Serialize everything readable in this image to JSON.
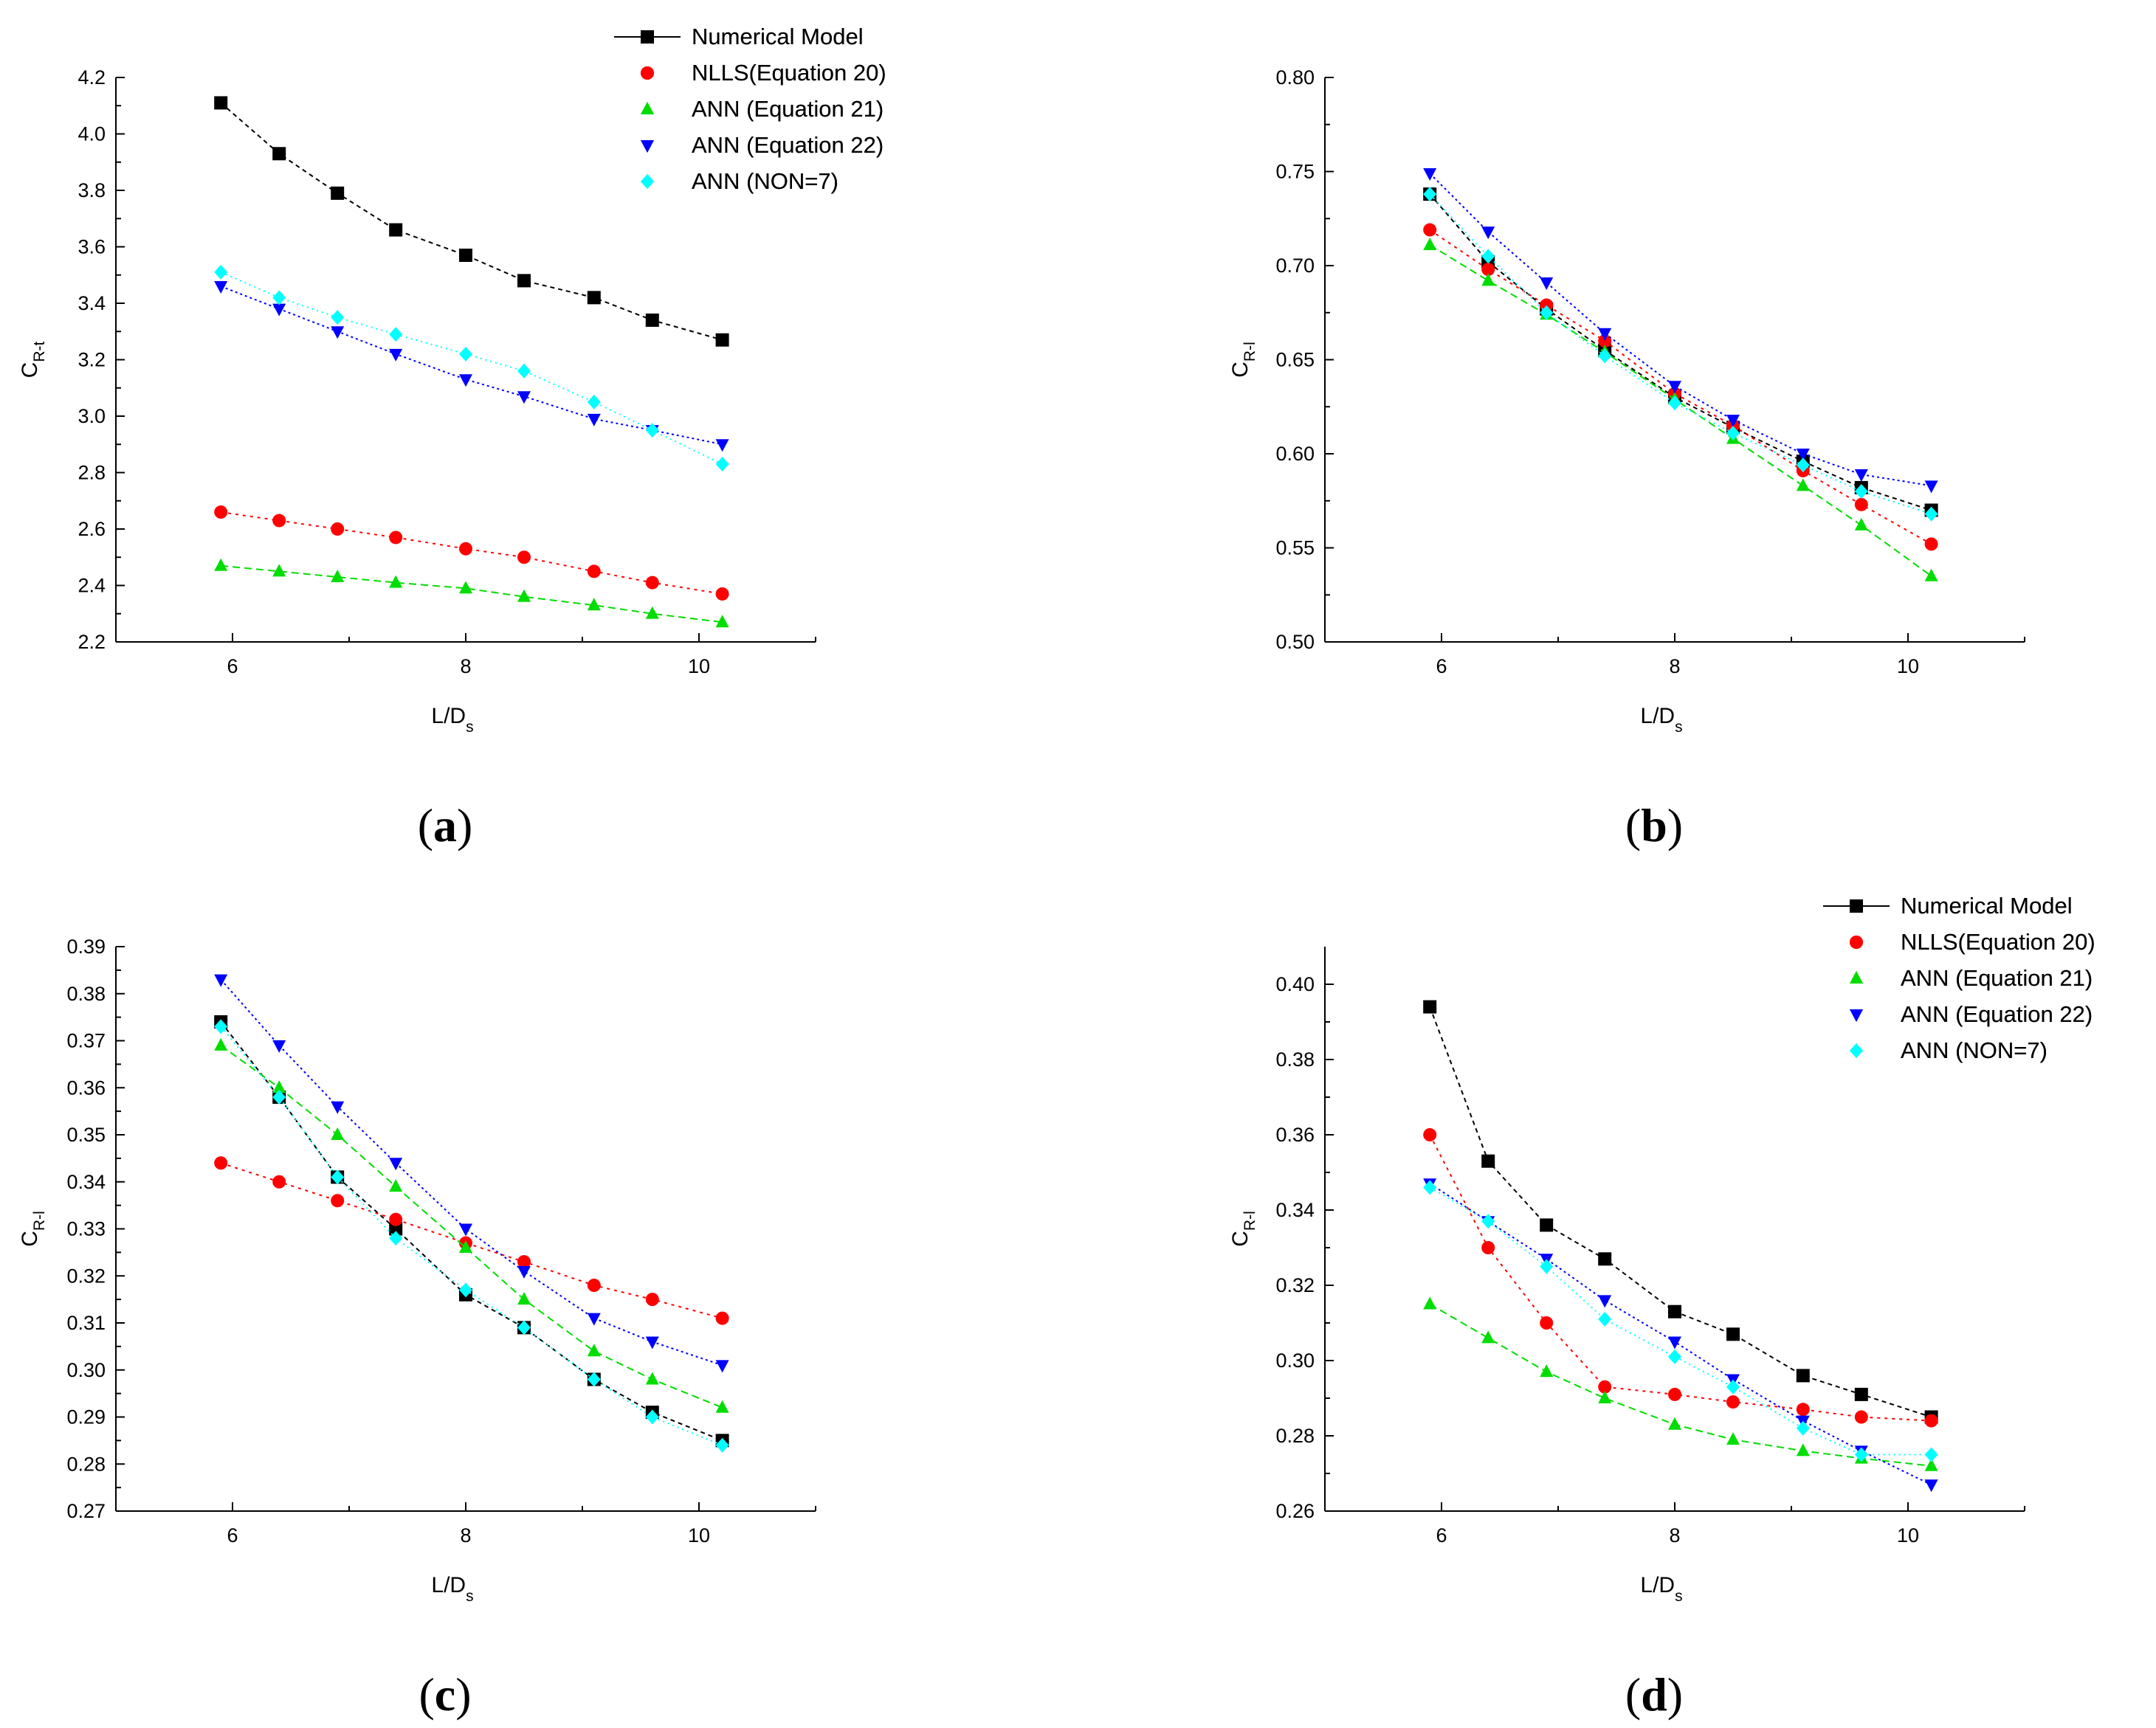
{
  "figure": {
    "colors": {
      "numerical": "#000000",
      "nlls": "#ff0000",
      "ann21": "#00dd00",
      "ann22": "#0000ff",
      "non7": "#00ffff"
    }
  },
  "chart_data": [
    {
      "id": "a",
      "panel_label": "(a)",
      "type": "line",
      "xlabel": "L/D",
      "xlabel_sub": "s",
      "ylabel": "C",
      "ylabel_sub": "R-t",
      "xlim": [
        5,
        11
      ],
      "xticks": [
        "6",
        "8",
        "10"
      ],
      "ylim": [
        2.2,
        4.2
      ],
      "yticks": [
        "2.2",
        "2.4",
        "2.6",
        "2.8",
        "3.0",
        "3.2",
        "3.4",
        "3.6",
        "3.8",
        "4.0",
        "4.2"
      ],
      "x": [
        5.9,
        6.4,
        6.9,
        7.4,
        8.0,
        8.5,
        9.1,
        9.6,
        10.2
      ],
      "series": [
        {
          "name": "Numerical Model",
          "key": "numerical",
          "marker": "square",
          "values": [
            4.11,
            3.93,
            3.79,
            3.66,
            3.57,
            3.48,
            3.42,
            3.34,
            3.27
          ]
        },
        {
          "name": "NLLS(Equation 20)",
          "key": "nlls",
          "marker": "circle",
          "values": [
            2.66,
            2.63,
            2.6,
            2.57,
            2.53,
            2.5,
            2.45,
            2.41,
            2.37
          ]
        },
        {
          "name": "ANN (Equation 21)",
          "key": "ann21",
          "marker": "triangle-up",
          "values": [
            2.47,
            2.45,
            2.43,
            2.41,
            2.39,
            2.36,
            2.33,
            2.3,
            2.27
          ]
        },
        {
          "name": "ANN (Equation 22)",
          "key": "ann22",
          "marker": "triangle-down",
          "values": [
            3.46,
            3.38,
            3.3,
            3.22,
            3.13,
            3.07,
            2.99,
            2.95,
            2.9
          ]
        },
        {
          "name": "ANN (NON=7)",
          "key": "non7",
          "marker": "diamond",
          "values": [
            3.51,
            3.42,
            3.35,
            3.29,
            3.22,
            3.16,
            3.05,
            2.95,
            2.83
          ]
        }
      ]
    },
    {
      "id": "b",
      "panel_label": "(b)",
      "type": "line",
      "xlabel": "L/D",
      "xlabel_sub": "s",
      "ylabel": "C",
      "ylabel_sub": "R-l",
      "xlim": [
        5,
        11
      ],
      "xticks": [
        "6",
        "8",
        "10"
      ],
      "ylim": [
        0.5,
        0.8
      ],
      "yticks": [
        "0.50",
        "0.55",
        "0.60",
        "0.65",
        "0.70",
        "0.75",
        "0.80"
      ],
      "x": [
        5.9,
        6.4,
        6.9,
        7.4,
        8.0,
        8.5,
        9.1,
        9.6,
        10.2
      ],
      "series": [
        {
          "name": "Numerical Model",
          "key": "numerical",
          "marker": "square",
          "values": [
            0.738,
            0.702,
            0.677,
            0.655,
            0.63,
            0.614,
            0.596,
            0.582,
            0.57
          ]
        },
        {
          "name": "NLLS(Equation 20)",
          "key": "nlls",
          "marker": "circle",
          "values": [
            0.719,
            0.698,
            0.679,
            0.66,
            0.632,
            0.615,
            0.591,
            0.573,
            0.552
          ]
        },
        {
          "name": "ANN (Equation 21)",
          "key": "ann21",
          "marker": "triangle-up",
          "values": [
            0.711,
            0.692,
            0.674,
            0.654,
            0.629,
            0.608,
            0.583,
            0.562,
            0.535
          ]
        },
        {
          "name": "ANN (Equation 22)",
          "key": "ann22",
          "marker": "triangle-down",
          "values": [
            0.749,
            0.718,
            0.691,
            0.664,
            0.636,
            0.618,
            0.6,
            0.589,
            0.583
          ]
        },
        {
          "name": "ANN (NON=7)",
          "key": "non7",
          "marker": "diamond",
          "values": [
            0.738,
            0.705,
            0.675,
            0.652,
            0.627,
            0.611,
            0.594,
            0.58,
            0.568
          ]
        }
      ]
    },
    {
      "id": "c",
      "panel_label": "(c)",
      "type": "line",
      "xlabel": "L/D",
      "xlabel_sub": "s",
      "ylabel": "C",
      "ylabel_sub": "R-l",
      "xlim": [
        5,
        11
      ],
      "xticks": [
        "6",
        "8",
        "10"
      ],
      "ylim": [
        0.27,
        0.39
      ],
      "yticks": [
        "0.27",
        "0.28",
        "0.29",
        "0.30",
        "0.31",
        "0.32",
        "0.33",
        "0.34",
        "0.35",
        "0.36",
        "0.37",
        "0.38",
        "0.39"
      ],
      "x": [
        5.9,
        6.4,
        6.9,
        7.4,
        8.0,
        8.5,
        9.1,
        9.6,
        10.2
      ],
      "series": [
        {
          "name": "Numerical Model",
          "key": "numerical",
          "marker": "square",
          "values": [
            0.374,
            0.358,
            0.341,
            0.33,
            0.316,
            0.309,
            0.298,
            0.291,
            0.285
          ]
        },
        {
          "name": "NLLS(Equation 20)",
          "key": "nlls",
          "marker": "circle",
          "values": [
            0.344,
            0.34,
            0.336,
            0.332,
            0.327,
            0.323,
            0.318,
            0.315,
            0.311
          ]
        },
        {
          "name": "ANN (Equation 21)",
          "key": "ann21",
          "marker": "triangle-up",
          "values": [
            0.369,
            0.36,
            0.35,
            0.339,
            0.326,
            0.315,
            0.304,
            0.298,
            0.292
          ]
        },
        {
          "name": "ANN (Equation 22)",
          "key": "ann22",
          "marker": "triangle-down",
          "values": [
            0.383,
            0.369,
            0.356,
            0.344,
            0.33,
            0.321,
            0.311,
            0.306,
            0.301
          ]
        },
        {
          "name": "ANN (NON=7)",
          "key": "non7",
          "marker": "diamond",
          "values": [
            0.373,
            0.358,
            0.341,
            0.328,
            0.317,
            0.309,
            0.298,
            0.29,
            0.284
          ]
        }
      ]
    },
    {
      "id": "d",
      "panel_label": "(d)",
      "type": "line",
      "xlabel": "L/D",
      "xlabel_sub": "s",
      "ylabel": "C",
      "ylabel_sub": "R-l",
      "xlim": [
        5,
        11
      ],
      "xticks": [
        "6",
        "8",
        "10"
      ],
      "ylim": [
        0.26,
        0.41
      ],
      "yticks": [
        "0.26",
        "0.28",
        "0.30",
        "0.32",
        "0.34",
        "0.36",
        "0.38",
        "0.40"
      ],
      "x": [
        5.9,
        6.4,
        6.9,
        7.4,
        8.0,
        8.5,
        9.1,
        9.6,
        10.2
      ],
      "series": [
        {
          "name": "Numerical Model",
          "key": "numerical",
          "marker": "square",
          "values": [
            0.394,
            0.353,
            0.336,
            0.327,
            0.313,
            0.307,
            0.296,
            0.291,
            0.285
          ]
        },
        {
          "name": "NLLS(Equation 20)",
          "key": "nlls",
          "marker": "circle",
          "values": [
            0.36,
            0.33,
            0.31,
            0.293,
            0.291,
            0.289,
            0.287,
            0.285,
            0.284
          ]
        },
        {
          "name": "ANN (Equation 21)",
          "key": "ann21",
          "marker": "triangle-up",
          "values": [
            0.315,
            0.306,
            0.297,
            0.29,
            0.283,
            0.279,
            0.276,
            0.274,
            0.272
          ]
        },
        {
          "name": "ANN (Equation 22)",
          "key": "ann22",
          "marker": "triangle-down",
          "values": [
            0.347,
            0.337,
            0.327,
            0.316,
            0.305,
            0.295,
            0.284,
            0.276,
            0.267
          ]
        },
        {
          "name": "ANN (NON=7)",
          "key": "non7",
          "marker": "diamond",
          "values": [
            0.346,
            0.337,
            0.325,
            0.311,
            0.301,
            0.293,
            0.282,
            0.275,
            0.275
          ]
        }
      ]
    }
  ]
}
